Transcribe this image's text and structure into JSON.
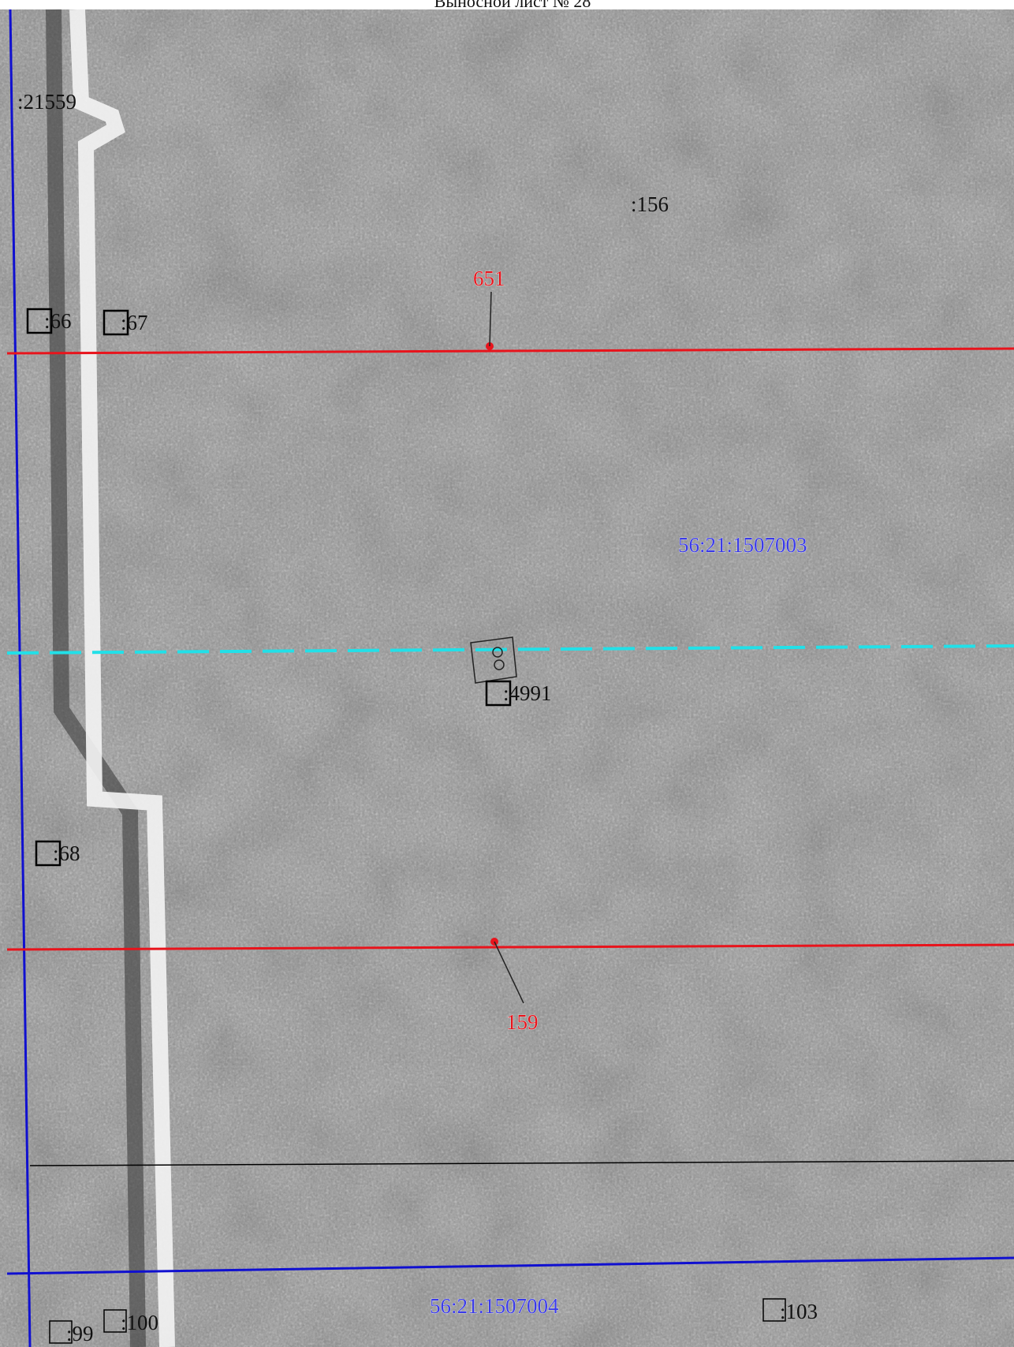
{
  "header": {
    "title": "Выносной лист № 28"
  },
  "labels": {
    "parcel_21559": ":21559",
    "parcel_156": ":156",
    "point_651": "651",
    "parcel_66": ":66",
    "parcel_67": ":67",
    "quarter_1507003": "56:21:1507003",
    "parcel_4991": ":4991",
    "parcel_68": ":68",
    "point_159": "159",
    "quarter_1507004": "56:21:1507004",
    "parcel_99": ":99",
    "parcel_100": ":100",
    "parcel_103": ":103"
  }
}
